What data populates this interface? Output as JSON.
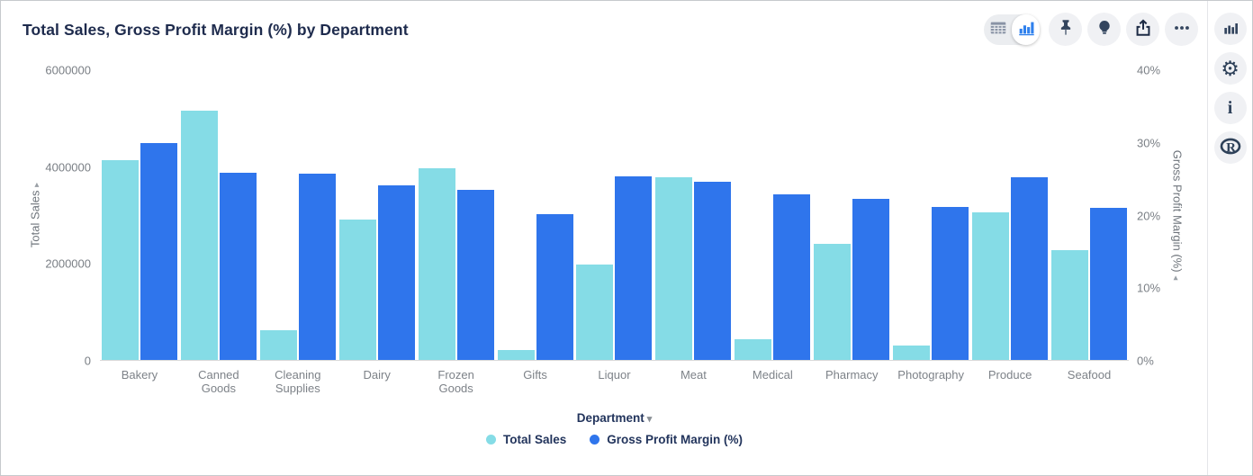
{
  "header": {
    "title": "Total Sales, Gross Profit Margin (%) by Department"
  },
  "toolbar": {
    "view_toggle": {
      "options": [
        "table-view",
        "chart-view"
      ],
      "selected": "chart-view"
    },
    "buttons": [
      "pin",
      "lightbulb",
      "share",
      "more"
    ]
  },
  "side_rail": {
    "buttons": [
      "chart-type",
      "settings",
      "info",
      "r-logo"
    ],
    "info_glyph": "i"
  },
  "xaxis_control": {
    "label": "Department"
  },
  "chart_data": {
    "type": "bar",
    "title": "Total Sales, Gross Profit Margin (%) by Department",
    "categories": [
      "Bakery",
      "Canned Goods",
      "Cleaning Supplies",
      "Dairy",
      "Frozen Goods",
      "Gifts",
      "Liquor",
      "Meat",
      "Medical",
      "Pharmacy",
      "Photography",
      "Produce",
      "Seafood"
    ],
    "series": [
      {
        "name": "Total Sales",
        "axis": "left",
        "color": "#85dce6",
        "values": [
          4140000,
          5160000,
          620000,
          2900000,
          3960000,
          200000,
          1980000,
          3790000,
          430000,
          2400000,
          300000,
          3050000,
          2270000
        ]
      },
      {
        "name": "Gross Profit Margin (%)",
        "axis": "right",
        "color": "#2f75ec",
        "values": [
          30,
          25.8,
          25.7,
          24.1,
          23.5,
          20.1,
          25.3,
          24.6,
          22.9,
          22.2,
          21.1,
          25.2,
          21
        ]
      }
    ],
    "left_axis": {
      "title": "Total Sales",
      "arrow": "▸",
      "min": 0,
      "max": 6000000,
      "ticks": [
        "6000000",
        "4000000",
        "2000000",
        "0"
      ]
    },
    "right_axis": {
      "title": "Gross Profit Margin (%)",
      "arrow": "◂",
      "min": 0,
      "max": 40,
      "ticks": [
        "40%",
        "30%",
        "20%",
        "10%",
        "0%"
      ]
    },
    "xlabel": "Department",
    "grid": false,
    "legend_position": "bottom"
  }
}
